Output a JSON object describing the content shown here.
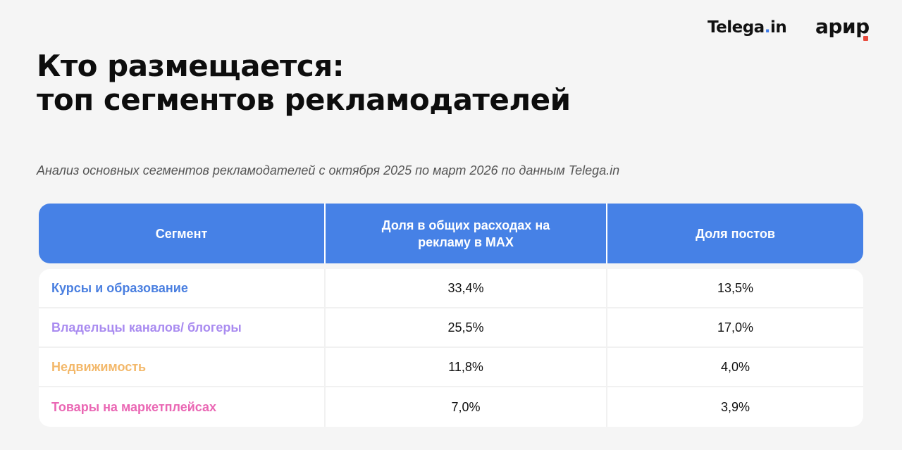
{
  "logos": {
    "telega_main": "Telega",
    "telega_dot": ".",
    "telega_suffix": "in",
    "apir_main": "ари",
    "apir_accent": "р",
    "accent_blue": "#3f7be8",
    "accent_red": "#e84a3c"
  },
  "title_line1": "Кто размещается:",
  "title_line2": "топ сегментов рекламодателей",
  "subtitle": "Анализ основных сегментов рекламодателей с октября 2025 по март 2026 по данным Telega.in",
  "table": {
    "header_color": "#4681e6",
    "headers": [
      "Сегмент",
      "Доля в общих расходах на рекламу в MAX",
      "Доля постов"
    ],
    "rows": [
      {
        "segment": "Курсы и образование",
        "spend_share": "33,4%",
        "post_share": "13,5%",
        "color": "#4a7fe0"
      },
      {
        "segment": "Владельцы каналов/ блогеры",
        "spend_share": "25,5%",
        "post_share": "17,0%",
        "color": "#a98bf0"
      },
      {
        "segment": "Недвижимость",
        "spend_share": "11,8%",
        "post_share": "4,0%",
        "color": "#f3b86a"
      },
      {
        "segment": "Товары на маркетплейсах",
        "spend_share": "7,0%",
        "post_share": "3,9%",
        "color": "#ea67b4"
      }
    ]
  }
}
